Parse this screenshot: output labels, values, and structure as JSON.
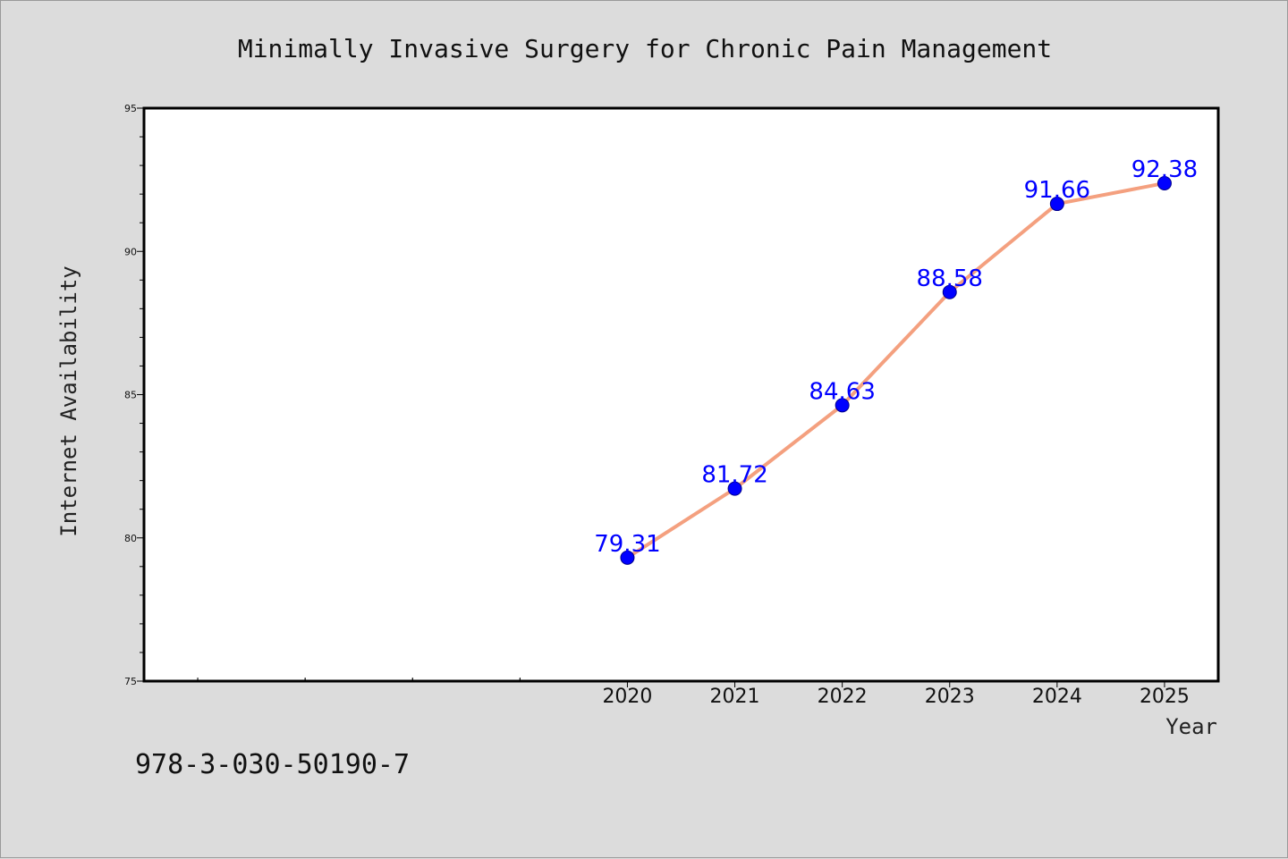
{
  "chart_data": {
    "type": "line",
    "title": "Minimally Invasive Surgery for Chronic Pain Management",
    "xlabel": "Year",
    "ylabel": "Internet Availability",
    "x": [
      2020,
      2021,
      2022,
      2023,
      2024,
      2025
    ],
    "x_tick_labels": [
      "2020",
      "2021",
      "2022",
      "2023",
      "2024",
      "2025"
    ],
    "xlim": [
      2015.5,
      2025.5
    ],
    "ylim": [
      75,
      95
    ],
    "y_ticks": [
      75,
      80,
      85,
      90,
      95
    ],
    "series": [
      {
        "values": [
          79.31,
          81.72,
          84.63,
          88.58,
          91.66,
          92.38
        ],
        "data_labels": [
          "79.31",
          "81.72",
          "84.63",
          "88.58",
          "91.66",
          "92.38"
        ],
        "line_color": "#f4a07f",
        "marker_color": "#0000ff"
      }
    ],
    "grid": false,
    "legend": "none"
  },
  "footnote": "978-3-030-50190-7",
  "colors": {
    "background": "#dcdcdc",
    "plot_background": "#ffffff",
    "data_label": "#0000ff"
  }
}
